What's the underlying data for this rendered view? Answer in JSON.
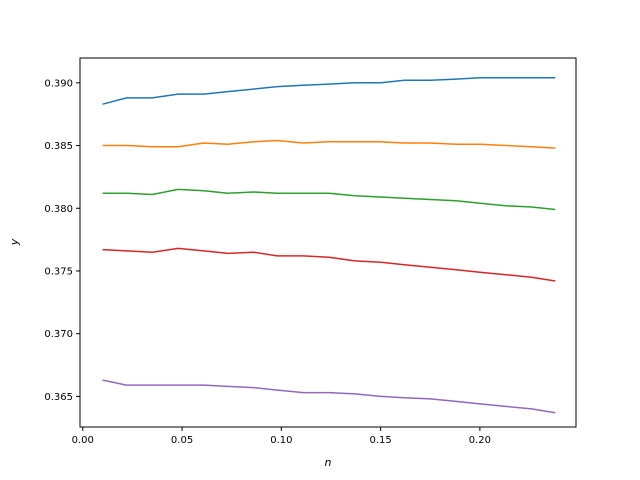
{
  "chart_data": {
    "type": "line",
    "title": "",
    "xlabel": "n",
    "ylabel": "y",
    "xlim": [
      -0.0014,
      0.2484
    ],
    "ylim": [
      0.36256,
      0.39198
    ],
    "grid": false,
    "legend": "none",
    "x_ticks": [
      0.0,
      0.05,
      0.1,
      0.15,
      0.2
    ],
    "x_tick_labels": [
      "0.00",
      "0.05",
      "0.10",
      "0.15",
      "0.20"
    ],
    "y_ticks": [
      0.365,
      0.37,
      0.375,
      0.38,
      0.385,
      0.39
    ],
    "y_tick_labels": [
      "0.365",
      "0.370",
      "0.375",
      "0.380",
      "0.385",
      "0.390"
    ],
    "x": [
      0.01,
      0.022,
      0.035,
      0.048,
      0.061,
      0.073,
      0.086,
      0.098,
      0.111,
      0.124,
      0.137,
      0.15,
      0.162,
      0.175,
      0.188,
      0.2,
      0.213,
      0.226,
      0.238
    ],
    "series": [
      {
        "color": "#1f77b4",
        "values": [
          0.3883,
          0.3888,
          0.3888,
          0.3891,
          0.3891,
          0.3893,
          0.3895,
          0.3897,
          0.3898,
          0.3899,
          0.39,
          0.39,
          0.3902,
          0.3902,
          0.3903,
          0.3904,
          0.3904,
          0.3904,
          0.3904
        ]
      },
      {
        "color": "#ff7f0e",
        "values": [
          0.385,
          0.385,
          0.3849,
          0.3849,
          0.3852,
          0.3851,
          0.3853,
          0.3854,
          0.3852,
          0.3853,
          0.3853,
          0.3853,
          0.3852,
          0.3852,
          0.3851,
          0.3851,
          0.385,
          0.3849,
          0.3848
        ]
      },
      {
        "color": "#2ca02c",
        "values": [
          0.3812,
          0.3812,
          0.3811,
          0.3815,
          0.3814,
          0.3812,
          0.3813,
          0.3812,
          0.3812,
          0.3812,
          0.381,
          0.3809,
          0.3808,
          0.3807,
          0.3806,
          0.3804,
          0.3802,
          0.3801,
          0.3799
        ]
      },
      {
        "color": "#d62728",
        "values": [
          0.3767,
          0.3766,
          0.3765,
          0.3768,
          0.3766,
          0.3764,
          0.3765,
          0.3762,
          0.3762,
          0.3761,
          0.3758,
          0.3757,
          0.3755,
          0.3753,
          0.3751,
          0.3749,
          0.3747,
          0.3745,
          0.3742
        ]
      },
      {
        "color": "#9467bd",
        "values": [
          0.3663,
          0.3659,
          0.3659,
          0.3659,
          0.3659,
          0.3658,
          0.3657,
          0.3655,
          0.3653,
          0.3653,
          0.3652,
          0.365,
          0.3649,
          0.3648,
          0.3646,
          0.3644,
          0.3642,
          0.364,
          0.3637
        ]
      }
    ]
  }
}
